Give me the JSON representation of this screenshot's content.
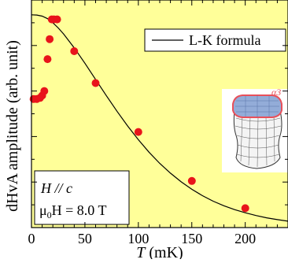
{
  "chart_data": {
    "type": "scatter",
    "xlabel": {
      "italic": "T",
      "rest": " (mK)"
    },
    "ylabel": "dHvA amplitude (arb. unit)",
    "xlim": [
      0,
      240
    ],
    "ylim": [
      0,
      1.0
    ],
    "xticks": [
      0,
      50,
      100,
      150,
      200
    ],
    "grid": false,
    "y_tick_labels_shown": false,
    "legend": {
      "position": "top-right",
      "label": "L-K formula"
    },
    "annotation": {
      "line1": "H // c",
      "line2_prefix": "μ",
      "line2_sub": "0",
      "line2_suffix": "H = 8.0 T"
    },
    "inset": {
      "label": "α3",
      "description": "Fermi surface sheet illustration"
    },
    "series": [
      {
        "type": "scatter",
        "color": "#e8141b",
        "x": [
          2,
          5,
          8,
          10,
          12,
          15,
          17,
          19,
          21,
          24,
          40,
          60,
          100,
          150,
          200
        ],
        "y": [
          0.565,
          0.565,
          0.57,
          0.58,
          0.6,
          0.74,
          0.828,
          0.915,
          0.915,
          0.915,
          0.775,
          0.635,
          0.42,
          0.205,
          0.085
        ]
      },
      {
        "name": "L-K formula",
        "type": "line",
        "color": "#000000",
        "x": [
          0,
          5,
          10,
          15,
          20,
          25,
          30,
          40,
          50,
          60,
          70,
          80,
          90,
          100,
          110,
          120,
          130,
          140,
          150,
          160,
          170,
          180,
          190,
          200,
          210,
          220,
          230,
          240
        ],
        "y": [
          0.935,
          0.934,
          0.929,
          0.918,
          0.9,
          0.877,
          0.851,
          0.79,
          0.722,
          0.651,
          0.58,
          0.511,
          0.446,
          0.386,
          0.331,
          0.282,
          0.239,
          0.201,
          0.168,
          0.14,
          0.116,
          0.096,
          0.079,
          0.065,
          0.053,
          0.043,
          0.035,
          0.028
        ]
      }
    ]
  },
  "colors": {
    "background": "#ffff99",
    "points": "#e8141b",
    "curve": "#000000"
  }
}
